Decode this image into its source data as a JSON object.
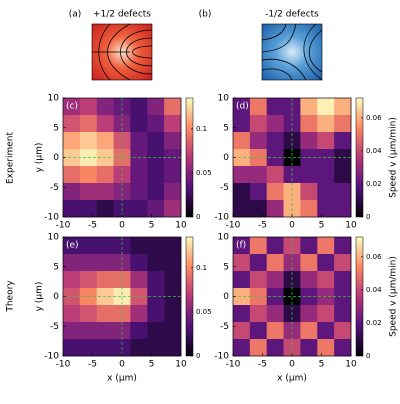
{
  "schematics": [
    {
      "label": "(a)",
      "title": "+1/2 defects"
    },
    {
      "label": "(b)",
      "title": "-1/2 defects"
    }
  ],
  "row_labels": [
    "Experiment",
    "Theory"
  ],
  "chart_data": [
    {
      "type": "heatmap",
      "panel_label": "(c)",
      "ylabel": "y (μm)",
      "xlim": [
        -10,
        10
      ],
      "ylim": [
        -10,
        10
      ],
      "xticks": [
        -10,
        -5,
        0,
        5,
        10
      ],
      "yticks": [
        -10,
        -5,
        0,
        5,
        10
      ],
      "colormap": "magma",
      "crosshair": true,
      "zlim": [
        0,
        0.135
      ],
      "zticks": [
        0,
        0.05,
        0.1
      ],
      "z": [
        [
          0.06,
          0.07,
          0.05,
          0.04,
          0.03,
          0.05,
          0.09
        ],
        [
          0.08,
          0.09,
          0.07,
          0.05,
          0.03,
          0.04,
          0.07
        ],
        [
          0.11,
          0.12,
          0.11,
          0.08,
          0.04,
          0.03,
          0.05
        ],
        [
          0.12,
          0.13,
          0.12,
          0.09,
          0.04,
          0.03,
          0.04
        ],
        [
          0.09,
          0.1,
          0.09,
          0.07,
          0.04,
          0.03,
          0.04
        ],
        [
          0.05,
          0.06,
          0.06,
          0.05,
          0.04,
          0.03,
          0.05
        ],
        [
          0.03,
          0.03,
          0.02,
          0.03,
          0.03,
          0.04,
          0.06
        ]
      ]
    },
    {
      "type": "heatmap",
      "panel_label": "(d)",
      "colorbar_label": "Speed v (μm/min)",
      "xlim": [
        -10,
        10
      ],
      "ylim": [
        -10,
        10
      ],
      "xticks": [
        -10,
        -5,
        0,
        5,
        10
      ],
      "yticks": [
        -10,
        -5,
        0,
        5,
        10
      ],
      "colormap": "magma",
      "crosshair": true,
      "zlim": [
        0,
        0.072
      ],
      "zticks": [
        0,
        0.02,
        0.04,
        0.06
      ],
      "z": [
        [
          0.02,
          0.05,
          0.02,
          0.02,
          0.06,
          0.07,
          0.06
        ],
        [
          0.02,
          0.04,
          0.03,
          0.02,
          0.05,
          0.06,
          0.05
        ],
        [
          0.05,
          0.03,
          0.02,
          0.01,
          0.03,
          0.04,
          0.02
        ],
        [
          0.06,
          0.05,
          0.02,
          0.0,
          0.02,
          0.02,
          0.01
        ],
        [
          0.03,
          0.03,
          0.04,
          0.02,
          0.02,
          0.02,
          0.01
        ],
        [
          0.01,
          0.02,
          0.05,
          0.06,
          0.04,
          0.02,
          0.02
        ],
        [
          0.01,
          0.01,
          0.03,
          0.06,
          0.05,
          0.02,
          0.02
        ]
      ]
    },
    {
      "type": "heatmap",
      "panel_label": "(e)",
      "xlabel": "x (μm)",
      "ylabel": "y (μm)",
      "xlim": [
        -10,
        10
      ],
      "ylim": [
        -10,
        10
      ],
      "xticks": [
        -10,
        -5,
        0,
        5,
        10
      ],
      "yticks": [
        -10,
        -5,
        0,
        5,
        10
      ],
      "colormap": "magma",
      "crosshair": true,
      "zlim": [
        0,
        0.135
      ],
      "zticks": [
        0,
        0.05,
        0.1
      ],
      "z": [
        [
          0.03,
          0.03,
          0.03,
          0.03,
          0.02,
          0.02,
          0.02
        ],
        [
          0.05,
          0.05,
          0.05,
          0.05,
          0.03,
          0.02,
          0.02
        ],
        [
          0.07,
          0.08,
          0.09,
          0.09,
          0.06,
          0.03,
          0.02
        ],
        [
          0.08,
          0.1,
          0.12,
          0.13,
          0.08,
          0.03,
          0.02
        ],
        [
          0.07,
          0.08,
          0.09,
          0.09,
          0.06,
          0.03,
          0.02
        ],
        [
          0.05,
          0.05,
          0.05,
          0.05,
          0.03,
          0.02,
          0.02
        ],
        [
          0.03,
          0.03,
          0.03,
          0.03,
          0.02,
          0.02,
          0.02
        ]
      ]
    },
    {
      "type": "heatmap",
      "panel_label": "(f)",
      "xlabel": "x (μm)",
      "colorbar_label": "Speed v (μm/min)",
      "xlim": [
        -10,
        10
      ],
      "ylim": [
        -10,
        10
      ],
      "xticks": [
        -10,
        -5,
        0,
        5,
        10
      ],
      "yticks": [
        -10,
        -5,
        0,
        5,
        10
      ],
      "colormap": "magma",
      "crosshair": true,
      "zlim": [
        0,
        0.072
      ],
      "zticks": [
        0,
        0.02,
        0.04,
        0.06
      ],
      "z": [
        [
          0.02,
          0.05,
          0.02,
          0.04,
          0.02,
          0.05,
          0.02
        ],
        [
          0.04,
          0.02,
          0.05,
          0.03,
          0.05,
          0.02,
          0.04
        ],
        [
          0.02,
          0.04,
          0.03,
          0.01,
          0.03,
          0.04,
          0.02
        ],
        [
          0.06,
          0.05,
          0.02,
          0.0,
          0.02,
          0.03,
          0.02
        ],
        [
          0.02,
          0.04,
          0.03,
          0.01,
          0.03,
          0.04,
          0.02
        ],
        [
          0.04,
          0.02,
          0.05,
          0.03,
          0.05,
          0.02,
          0.04
        ],
        [
          0.02,
          0.05,
          0.02,
          0.04,
          0.02,
          0.05,
          0.02
        ]
      ]
    }
  ]
}
